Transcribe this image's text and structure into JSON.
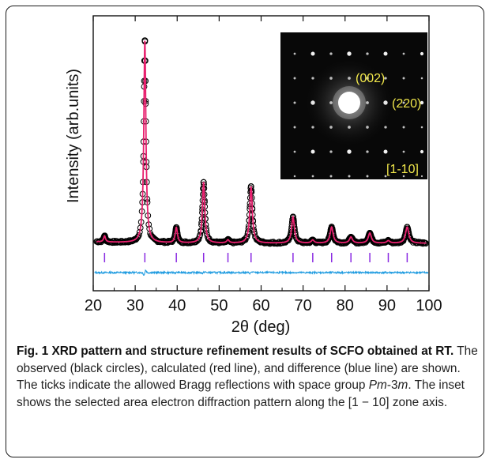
{
  "chart_data": {
    "type": "line",
    "xlabel": "2θ (deg)",
    "ylabel": "Intensity (arb.units)",
    "xlim": [
      20,
      100
    ],
    "xticks": [
      20,
      30,
      40,
      50,
      60,
      70,
      80,
      90,
      100
    ],
    "grid": false,
    "legend": "none",
    "series": [
      {
        "kind": "observed",
        "marker": "circle",
        "color": "#000000"
      },
      {
        "kind": "calculated",
        "color": "#e8206e"
      },
      {
        "kind": "difference",
        "color": "#1e9be0"
      }
    ],
    "peaks": [
      {
        "x": 22.7,
        "y": 3
      },
      {
        "x": 32.3,
        "y": 100
      },
      {
        "x": 39.8,
        "y": 7.5
      },
      {
        "x": 46.3,
        "y": 30
      },
      {
        "x": 52.1,
        "y": 1.5
      },
      {
        "x": 57.6,
        "y": 28
      },
      {
        "x": 67.6,
        "y": 13
      },
      {
        "x": 72.3,
        "y": 1.5
      },
      {
        "x": 76.8,
        "y": 8
      },
      {
        "x": 81.4,
        "y": 3
      },
      {
        "x": 85.9,
        "y": 5
      },
      {
        "x": 90.3,
        "y": 1.2
      },
      {
        "x": 94.8,
        "y": 8
      }
    ],
    "bragg_ticks": [
      22.7,
      32.3,
      39.8,
      46.3,
      52.1,
      57.6,
      67.6,
      72.3,
      76.8,
      81.4,
      85.9,
      90.3,
      94.8
    ],
    "bragg_tick_color": "#8a2be2",
    "inset": {
      "labels": [
        "(002)",
        "(220)",
        "[1-10]"
      ],
      "label_color": "#f2e84b"
    }
  },
  "caption": {
    "bold_text": "Fig. 1 XRD pattern and structure refinement results of SCFO obtained at RT.",
    "text_1": " The observed (black circles), calculated (red line), and difference (blue line) are shown. The ticks indicate the allowed Bragg reflections with space group ",
    "space_group_italic_1": "Pm",
    "space_group_rest": "-3",
    "space_group_italic_2": "m",
    "text_2": ". The inset shows the selected area electron diffraction pattern along the [1 − 10] zone axis."
  }
}
